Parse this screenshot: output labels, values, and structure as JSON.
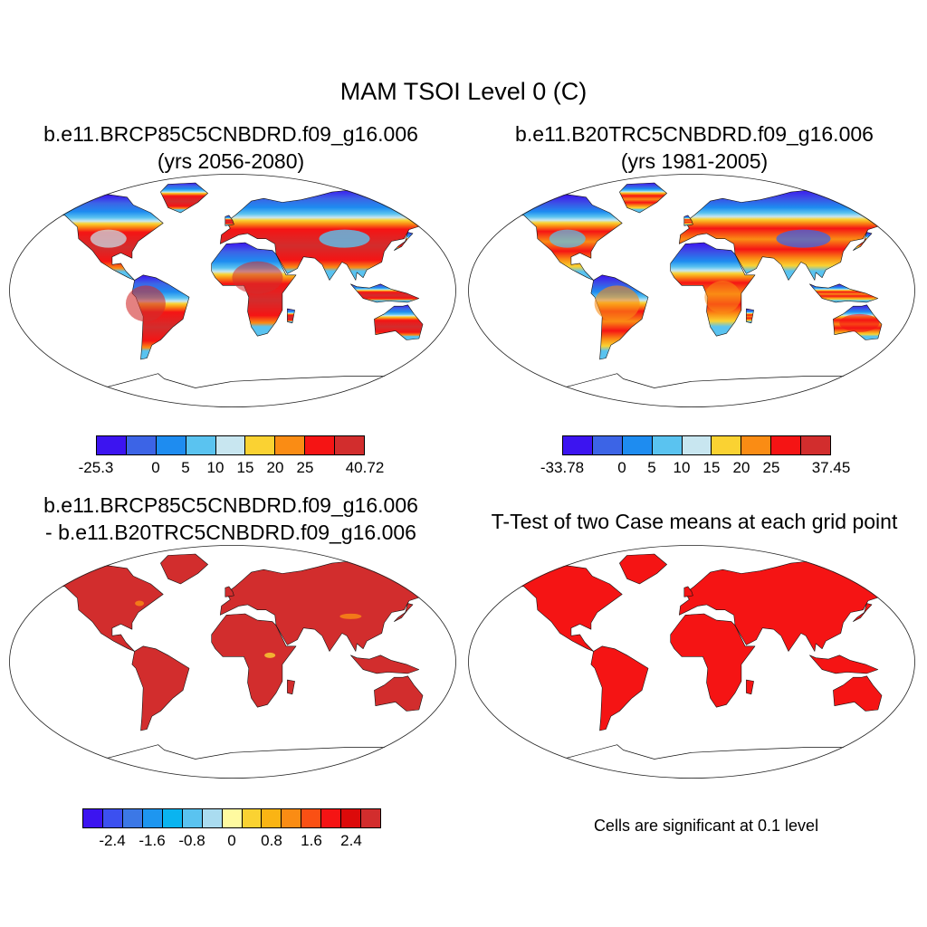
{
  "title": "MAM TSOI Level 0 (C)",
  "panels": [
    {
      "title_line1": "b.e11.BRCP85C5CNBDRD.f09_g16.006",
      "title_line2": "(yrs 2056-2080)"
    },
    {
      "title_line1": "b.e11.B20TRC5CNBDRD.f09_g16.006",
      "title_line2": "(yrs 1981-2005)"
    },
    {
      "title_line1": "b.e11.BRCP85C5CNBDRD.f09_g16.006",
      "title_line2": "- b.e11.B20TRC5CNBDRD.f09_g16.006"
    },
    {
      "title_line1": "T-Test of two Case means at each grid point",
      "title_line2": ""
    }
  ],
  "colorbars": [
    {
      "colors": [
        "#3c14f0",
        "#3c64e6",
        "#1e8cf0",
        "#5ac3f0",
        "#c8e6f0",
        "#fad232",
        "#fa8c14",
        "#f51414",
        "#d22d2d"
      ],
      "tick_labels": [
        "-25.3",
        "0",
        "5",
        "10",
        "15",
        "20",
        "25",
        "40.72"
      ],
      "tick_positions": [
        0,
        2,
        3,
        4,
        5,
        6,
        7,
        9
      ]
    },
    {
      "colors": [
        "#3c14f0",
        "#3c64e6",
        "#1e8cf0",
        "#5ac3f0",
        "#c8e6f0",
        "#fad232",
        "#fa8c14",
        "#f51414",
        "#d22d2d"
      ],
      "tick_labels": [
        "-33.78",
        "0",
        "5",
        "10",
        "15",
        "20",
        "25",
        "37.45"
      ],
      "tick_positions": [
        0,
        2,
        3,
        4,
        5,
        6,
        7,
        9
      ]
    },
    {
      "colors": [
        "#3c14f0",
        "#3c50f0",
        "#3c78e6",
        "#1e96f0",
        "#0ab4f0",
        "#5ac3f0",
        "#aadcf0",
        "#fffaa0",
        "#fad232",
        "#fab414",
        "#fa8c14",
        "#fa5014",
        "#f51414",
        "#dc0a0a",
        "#d22d2d"
      ],
      "tick_labels": [
        "-2.4",
        "-1.6",
        "-0.8",
        "0",
        "0.8",
        "1.6",
        "2.4"
      ],
      "tick_positions": [
        1.5,
        3.5,
        5.5,
        7.5,
        9.5,
        11.5,
        13.5
      ]
    }
  ],
  "significance_note": "Cells are significant at 0.1 level"
}
